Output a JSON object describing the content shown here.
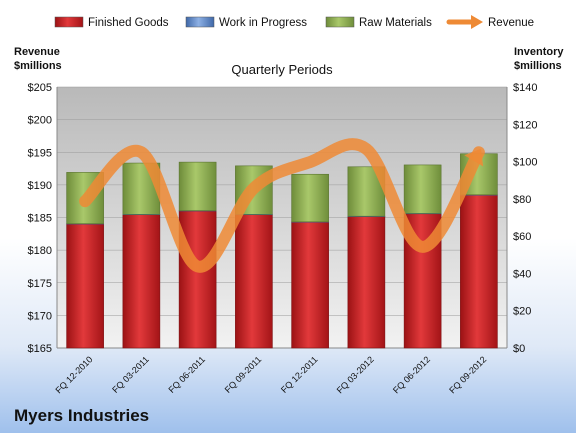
{
  "company": "Myers Industries",
  "chart_data": {
    "type": "bar",
    "stacked": true,
    "title": "Quarterly Periods",
    "categories": [
      "FQ 12-2010",
      "FQ 03-2011",
      "FQ 06-2011",
      "FQ 09-2011",
      "FQ 12-2011",
      "FQ 03-2012",
      "FQ 06-2012",
      "FQ 09-2012"
    ],
    "left_axis": {
      "label_line1": "Revenue",
      "label_line2": "$millions",
      "range": [
        165,
        205
      ],
      "ticks": [
        "$165",
        "$170",
        "$175",
        "$180",
        "$185",
        "$190",
        "$195",
        "$200",
        "$205"
      ]
    },
    "right_axis": {
      "label_line1": "Inventory",
      "label_line2": "$millions",
      "range": [
        0,
        140
      ],
      "ticks": [
        "$0",
        "$20",
        "$40",
        "$60",
        "$80",
        "$100",
        "$120",
        "$140"
      ]
    },
    "series": [
      {
        "name": "Finished Goods",
        "axis": "right",
        "color": "#c8191c",
        "values": [
          66.5,
          71.5,
          73.5,
          71.5,
          67.5,
          70.5,
          72,
          82
        ]
      },
      {
        "name": "Work in Progress",
        "axis": "right",
        "color": "#5b86c8",
        "values": [
          0.2,
          0.2,
          0.2,
          0.2,
          0.2,
          0.2,
          0.2,
          0.2
        ]
      },
      {
        "name": "Raw Materials",
        "axis": "right",
        "color": "#8fb050",
        "values": [
          27.5,
          27.5,
          26,
          26,
          25.5,
          26.5,
          26,
          22
        ]
      },
      {
        "name": "Revenue",
        "axis": "left",
        "type": "line",
        "color": "#ee8a35",
        "values": [
          187.5,
          195,
          177.5,
          189.5,
          193.5,
          195.5,
          180.5,
          195
        ]
      }
    ],
    "legend_position": "top",
    "grid": true
  }
}
